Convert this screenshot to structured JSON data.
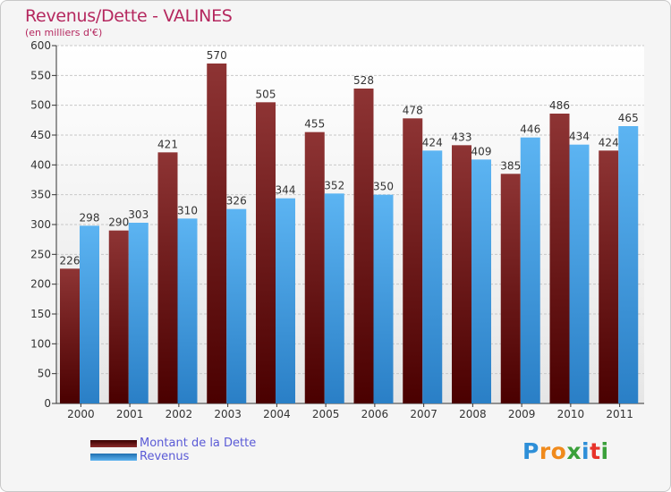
{
  "chart_data": {
    "type": "bar",
    "title": "Revenus/Dette - VALINES",
    "subtitle": "(en milliers d'€)",
    "categories": [
      "2000",
      "2001",
      "2002",
      "2003",
      "2004",
      "2005",
      "2006",
      "2007",
      "2008",
      "2009",
      "2010",
      "2011"
    ],
    "series": [
      {
        "name": "Montant de la Dette",
        "color": "#7a1f1f",
        "values": [
          226,
          290,
          421,
          570,
          505,
          455,
          528,
          478,
          433,
          385,
          486,
          424
        ]
      },
      {
        "name": "Revenus",
        "color": "#4aa3e8",
        "values": [
          298,
          303,
          310,
          326,
          344,
          352,
          350,
          424,
          409,
          446,
          434,
          465
        ]
      }
    ],
    "ylim": [
      0,
      600
    ],
    "yticks": [
      0,
      50,
      100,
      150,
      200,
      250,
      300,
      350,
      400,
      450,
      500,
      550,
      600
    ],
    "grid": true,
    "legend": "bottom-left"
  },
  "logo": {
    "letters": [
      {
        "char": "P",
        "color": "#2e8fd8"
      },
      {
        "char": "r",
        "color": "#f08a1c"
      },
      {
        "char": "o",
        "color": "#f08a1c"
      },
      {
        "char": "x",
        "color": "#3aa03a"
      },
      {
        "char": "i",
        "color": "#2e8fd8"
      },
      {
        "char": "t",
        "color": "#e7332a"
      },
      {
        "char": "i",
        "color": "#3aa03a"
      }
    ]
  }
}
